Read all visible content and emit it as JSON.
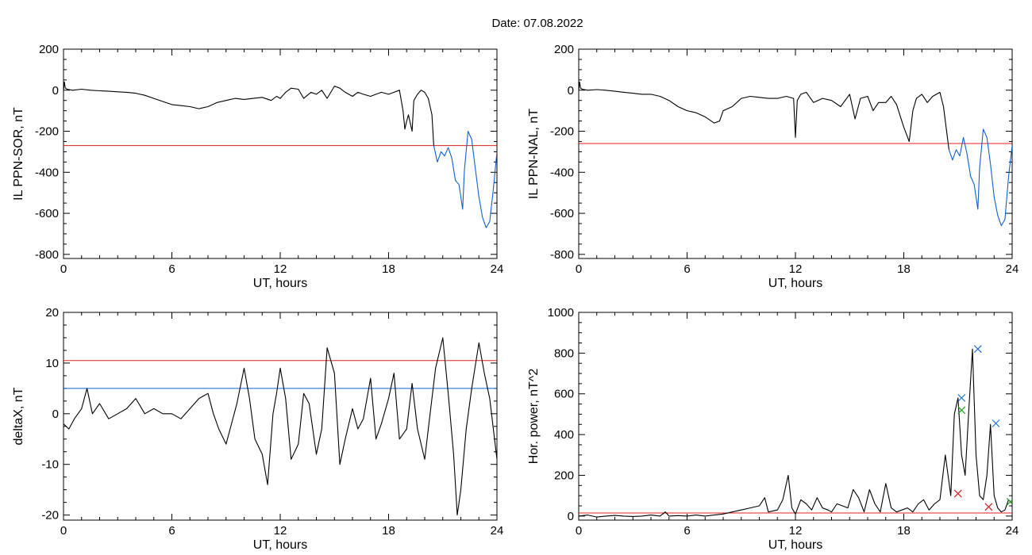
{
  "title": "Date:  07.08.2022",
  "chart_data": [
    {
      "id": "il-sor",
      "type": "line",
      "ylabel": "IL PPN-SOR, nT",
      "xlabel": "UT, hours",
      "xlim": [
        0,
        24
      ],
      "ylim": [
        -820,
        200
      ],
      "xticks": [
        0,
        6,
        12,
        18,
        24
      ],
      "yticks": [
        -800,
        -600,
        -400,
        -200,
        0,
        200
      ],
      "threshold": {
        "value": -270,
        "color": "#e02020"
      },
      "series": [
        {
          "color": "#000000",
          "x": [
            0,
            0.05,
            0.1,
            0.2,
            0.5,
            1,
            1.5,
            2,
            2.5,
            3,
            3.5,
            4,
            4.5,
            5,
            5.5,
            6,
            6.5,
            7,
            7.5,
            8,
            8.5,
            9,
            9.5,
            10,
            10.5,
            11,
            11.5,
            11.8,
            12,
            12.3,
            12.6,
            13,
            13.3,
            13.7,
            14,
            14.3,
            14.6,
            15,
            15.3,
            15.6,
            16,
            16.3,
            16.6,
            17,
            17.3,
            17.6,
            18,
            18.3,
            18.6,
            18.8,
            18.9,
            19.0,
            19.1,
            19.2,
            19.3,
            19.4,
            19.6,
            19.8,
            20.0,
            20.2,
            20.4,
            20.5
          ],
          "y": [
            0,
            40,
            10,
            5,
            0,
            5,
            0,
            -3,
            -5,
            -8,
            -10,
            -15,
            -25,
            -40,
            -55,
            -70,
            -75,
            -80,
            -90,
            -80,
            -60,
            -50,
            -40,
            -45,
            -40,
            -35,
            -50,
            -30,
            -40,
            -10,
            10,
            5,
            -40,
            -10,
            -20,
            0,
            -40,
            20,
            10,
            -10,
            -30,
            -10,
            -20,
            -30,
            -20,
            -10,
            -20,
            -10,
            0,
            -100,
            -190,
            -150,
            -120,
            -160,
            -200,
            -50,
            -20,
            0,
            -10,
            -40,
            -120,
            -270
          ]
        },
        {
          "color": "#1060d0",
          "x": [
            20.5,
            20.7,
            20.9,
            21.1,
            21.3,
            21.5,
            21.7,
            21.9,
            22.0,
            22.1,
            22.2,
            22.4,
            22.6,
            22.8,
            23.0,
            23.2,
            23.4,
            23.6,
            23.8,
            24.0
          ],
          "y": [
            -270,
            -350,
            -300,
            -320,
            -280,
            -330,
            -440,
            -460,
            -520,
            -580,
            -390,
            -200,
            -240,
            -380,
            -520,
            -620,
            -670,
            -640,
            -480,
            -300
          ]
        }
      ]
    },
    {
      "id": "il-nal",
      "type": "line",
      "ylabel": "IL PPN-NAL, nT",
      "xlabel": "UT, hours",
      "xlim": [
        0,
        24
      ],
      "ylim": [
        -820,
        200
      ],
      "xticks": [
        0,
        6,
        12,
        18,
        24
      ],
      "yticks": [
        -800,
        -600,
        -400,
        -200,
        0,
        200
      ],
      "threshold": {
        "value": -260,
        "color": "#e02020"
      },
      "series": [
        {
          "color": "#000000",
          "x": [
            0,
            0.05,
            0.1,
            0.2,
            0.5,
            1,
            1.5,
            2,
            2.5,
            3,
            3.5,
            4,
            4.5,
            5,
            5.5,
            6,
            6.5,
            7,
            7.5,
            7.8,
            8,
            8.5,
            9,
            9.5,
            10,
            10.5,
            11,
            11.5,
            11.9,
            12.0,
            12.1,
            12.3,
            12.6,
            13,
            13.5,
            14,
            14.5,
            15,
            15.3,
            15.6,
            16,
            16.3,
            16.6,
            17,
            17.3,
            17.6,
            18,
            18.3,
            18.5,
            18.7,
            19,
            19.3,
            19.6,
            20,
            20.2,
            20.5
          ],
          "y": [
            0,
            40,
            10,
            5,
            0,
            3,
            0,
            -5,
            -10,
            -15,
            -20,
            -20,
            -30,
            -50,
            -80,
            -100,
            -110,
            -130,
            -160,
            -150,
            -100,
            -80,
            -40,
            -30,
            -35,
            -40,
            -40,
            -30,
            -40,
            -230,
            -50,
            -20,
            -10,
            -60,
            -40,
            -50,
            -80,
            -20,
            -140,
            -40,
            -30,
            -100,
            -60,
            -60,
            -30,
            -70,
            -180,
            -250,
            -100,
            -40,
            -20,
            -60,
            -30,
            -10,
            -80,
            -290
          ]
        },
        {
          "color": "#1060d0",
          "x": [
            20.5,
            20.7,
            20.9,
            21.1,
            21.3,
            21.5,
            21.7,
            21.9,
            22.0,
            22.1,
            22.2,
            22.4,
            22.6,
            22.8,
            23.0,
            23.2,
            23.4,
            23.6,
            23.8,
            24.0
          ],
          "y": [
            -290,
            -340,
            -290,
            -320,
            -230,
            -310,
            -420,
            -460,
            -520,
            -580,
            -380,
            -190,
            -230,
            -360,
            -520,
            -610,
            -660,
            -630,
            -420,
            -270
          ]
        }
      ]
    },
    {
      "id": "deltax",
      "type": "line",
      "ylabel": "deltaX, nT",
      "xlabel": "UT, hours",
      "xlim": [
        0,
        24
      ],
      "ylim": [
        -21,
        20
      ],
      "xticks": [
        0,
        6,
        12,
        18,
        24
      ],
      "yticks": [
        -20,
        -10,
        0,
        10,
        20
      ],
      "threshold": {
        "value": 10.5,
        "color": "#e02020"
      },
      "threshold2": {
        "value": 5,
        "color": "#1060d0"
      },
      "series": [
        {
          "color": "#000000",
          "x": [
            0,
            0.3,
            0.6,
            1,
            1.3,
            1.6,
            2,
            2.5,
            3,
            3.5,
            4,
            4.5,
            5,
            5.5,
            6,
            6.5,
            7,
            7.5,
            8,
            8.3,
            8.6,
            9,
            9.3,
            9.6,
            10,
            10.3,
            10.6,
            11,
            11.3,
            11.6,
            11.8,
            12,
            12.3,
            12.6,
            13,
            13.3,
            13.6,
            14,
            14.3,
            14.6,
            15,
            15.3,
            15.6,
            16,
            16.3,
            16.6,
            17,
            17.3,
            17.6,
            18,
            18.3,
            18.6,
            19,
            19.3,
            19.6,
            20,
            20.3,
            20.6,
            21,
            21.3,
            21.6,
            21.8,
            22,
            22.3,
            22.6,
            23,
            23.3,
            23.6,
            24
          ],
          "y": [
            -2,
            -3,
            -1,
            1,
            5,
            0,
            2,
            -1,
            0,
            1,
            3,
            0,
            1,
            0,
            0,
            -1,
            1,
            3,
            4,
            0,
            -3,
            -6,
            -2,
            2,
            9,
            3,
            -5,
            -8,
            -14,
            0,
            4,
            9,
            3,
            -9,
            -6,
            4,
            2,
            -8,
            -3,
            13,
            8,
            -10,
            -5,
            1,
            -3,
            -1,
            7,
            -5,
            -2,
            3,
            8,
            -5,
            -3,
            6,
            -3,
            -9,
            0,
            9,
            15,
            4,
            -8,
            -20,
            -15,
            -3,
            5,
            14,
            8,
            3,
            -9
          ]
        }
      ]
    },
    {
      "id": "hor-power",
      "type": "line",
      "ylabel": "Hor. power, nT^2",
      "xlabel": "UT, hours",
      "xlim": [
        0,
        24
      ],
      "ylim": [
        -20,
        1000
      ],
      "xticks": [
        0,
        6,
        12,
        18,
        24
      ],
      "yticks": [
        0,
        200,
        400,
        600,
        800,
        1000
      ],
      "threshold": {
        "value": 15,
        "color": "#e02020"
      },
      "series": [
        {
          "color": "#000000",
          "x": [
            0,
            0.5,
            1,
            1.5,
            2,
            2.5,
            3,
            3.5,
            4,
            4.5,
            4.8,
            5,
            5.5,
            6,
            6.5,
            7,
            7.5,
            8,
            8.5,
            9,
            9.5,
            10,
            10.3,
            10.5,
            11,
            11.3,
            11.6,
            11.8,
            12,
            12.3,
            12.6,
            12.9,
            13.2,
            13.5,
            13.8,
            14,
            14.3,
            14.6,
            14.9,
            15.2,
            15.5,
            15.8,
            16.1,
            16.4,
            16.7,
            17,
            17.3,
            17.6,
            17.9,
            18.2,
            18.5,
            18.8,
            19.1,
            19.4,
            19.7,
            20,
            20.3,
            20.6,
            20.8,
            21.0,
            21.2,
            21.4,
            21.6,
            21.8,
            22.0,
            22.2,
            22.4,
            22.6,
            22.8,
            23.0,
            23.2,
            23.4,
            23.6,
            23.8,
            24
          ],
          "y": [
            0,
            5,
            -5,
            0,
            3,
            0,
            -2,
            0,
            5,
            0,
            20,
            0,
            2,
            0,
            5,
            0,
            5,
            10,
            20,
            30,
            40,
            50,
            90,
            20,
            30,
            80,
            200,
            40,
            10,
            80,
            60,
            30,
            90,
            40,
            30,
            20,
            60,
            50,
            40,
            130,
            90,
            20,
            130,
            60,
            20,
            160,
            40,
            20,
            30,
            40,
            20,
            60,
            80,
            30,
            60,
            80,
            300,
            100,
            500,
            580,
            300,
            200,
            520,
            820,
            300,
            100,
            80,
            200,
            450,
            100,
            40,
            20,
            30,
            80,
            60
          ]
        }
      ],
      "markers": [
        {
          "x": 21.2,
          "y": 580,
          "color": "#2070d0"
        },
        {
          "x": 22.1,
          "y": 820,
          "color": "#2070d0"
        },
        {
          "x": 23.1,
          "y": 455,
          "color": "#2070d0"
        },
        {
          "x": 21.2,
          "y": 520,
          "color": "#20a020"
        },
        {
          "x": 21.0,
          "y": 110,
          "color": "#d02020"
        },
        {
          "x": 22.7,
          "y": 45,
          "color": "#d02020"
        },
        {
          "x": 23.9,
          "y": 70,
          "color": "#20a020"
        }
      ]
    }
  ]
}
